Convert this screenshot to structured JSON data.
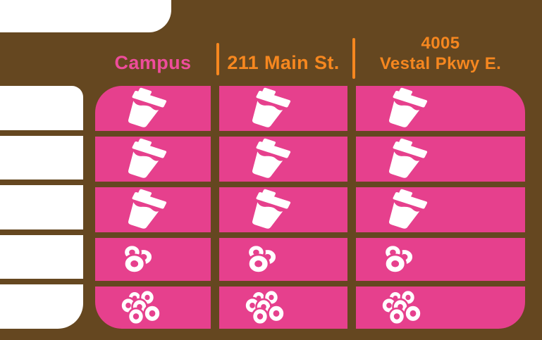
{
  "title": "Store menu comparison table",
  "colors": {
    "background_brown": "#654720",
    "cell_pink": "#E6408D",
    "header_pink": "#EE4C9B",
    "header_orange": "#F6871F",
    "card_white": "#FFFFFF"
  },
  "header": {
    "columns": [
      {
        "label": "Campus"
      },
      {
        "label": "211 Main St."
      },
      {
        "label_line1": "4005",
        "label_line2": "Vestal Pkwy E."
      }
    ]
  },
  "icons": {
    "coffee-cup": "coffee-cup-icon",
    "donut-trio": "three-donuts-icon",
    "donut-cluster": "six-donuts-icon"
  },
  "chart_data": {
    "type": "table",
    "columns": [
      "Campus",
      "211 Main St.",
      "4005 Vestal Pkwy E."
    ],
    "rows": [
      {
        "label": "",
        "icon": "coffee-cup",
        "cells": [
          "coffee-cup",
          "coffee-cup",
          "coffee-cup"
        ]
      },
      {
        "label": "",
        "icon": "coffee-cup",
        "cells": [
          "coffee-cup",
          "coffee-cup",
          "coffee-cup"
        ]
      },
      {
        "label": "",
        "icon": "coffee-cup",
        "cells": [
          "coffee-cup",
          "coffee-cup",
          "coffee-cup"
        ]
      },
      {
        "label": "",
        "icon": "donut-trio",
        "cells": [
          "donut-trio",
          "donut-trio",
          "donut-trio"
        ]
      },
      {
        "label": "",
        "icon": "donut-cluster",
        "cells": [
          "donut-cluster",
          "donut-cluster",
          "donut-cluster"
        ]
      }
    ]
  }
}
